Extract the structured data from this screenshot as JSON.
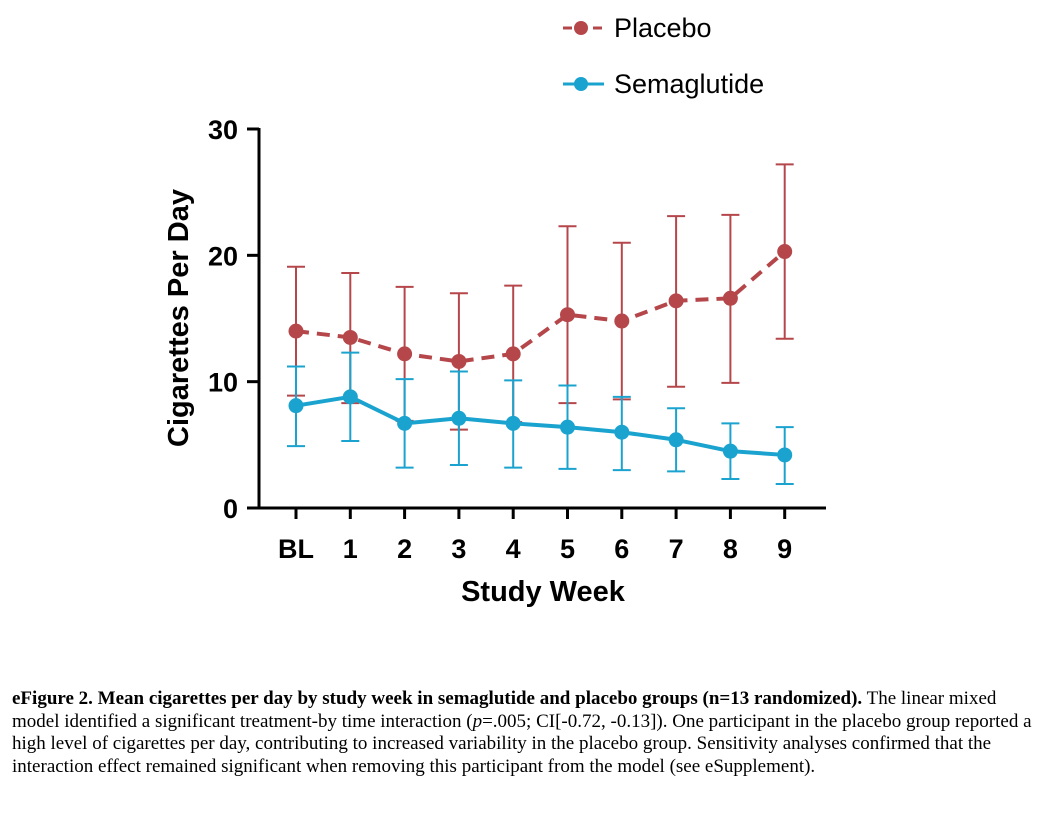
{
  "chart_data": {
    "type": "line",
    "ylabel": "Cigarettes Per Day",
    "xlabel": "Study Week",
    "categories": [
      "BL",
      "1",
      "2",
      "3",
      "4",
      "5",
      "6",
      "7",
      "8",
      "9"
    ],
    "ylim": [
      0,
      30
    ],
    "yticks": [
      0,
      10,
      20,
      30
    ],
    "legend_position": "top-right",
    "series": [
      {
        "name": "Placebo",
        "color": "#b5474b",
        "line_style": "dashed",
        "values": [
          14.0,
          13.5,
          12.2,
          11.6,
          12.2,
          15.3,
          14.8,
          16.4,
          16.6,
          20.3
        ],
        "err_upper": [
          19.1,
          18.6,
          17.5,
          17.0,
          17.6,
          22.3,
          21.0,
          23.1,
          23.2,
          27.2
        ],
        "err_lower": [
          8.9,
          8.3,
          6.9,
          6.2,
          6.8,
          8.3,
          8.6,
          9.6,
          9.9,
          13.4
        ]
      },
      {
        "name": "Semaglutide",
        "color": "#1ba3cf",
        "line_style": "solid",
        "values": [
          8.1,
          8.8,
          6.7,
          7.1,
          6.7,
          6.4,
          6.0,
          5.4,
          4.5,
          4.2
        ],
        "err_upper": [
          11.2,
          12.3,
          10.2,
          10.8,
          10.1,
          9.7,
          8.8,
          7.9,
          6.7,
          6.4
        ],
        "err_lower": [
          4.9,
          5.3,
          3.2,
          3.4,
          3.2,
          3.1,
          3.0,
          2.9,
          2.3,
          1.9
        ]
      }
    ]
  },
  "caption": {
    "label": "eFigure 2. Mean cigarettes per day by study week in semaglutide and placebo groups (n=13 randomized).",
    "text_part1": " The linear mixed model identified a significant treatment-by time interaction (",
    "p_symbol": "p",
    "text_part2": "=.005; CI[-0.72, -0.13]). One participant in the placebo group reported a high level of cigarettes per day, contributing to increased variability in the placebo group. Sensitivity analyses confirmed that the interaction effect remained significant when removing this participant from the model (see eSupplement)."
  }
}
